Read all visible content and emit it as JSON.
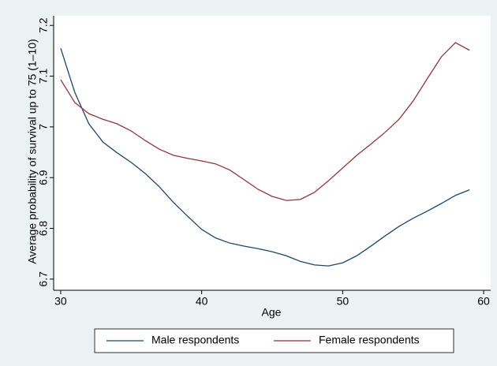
{
  "chart_data": {
    "type": "line",
    "x": [
      30,
      31,
      32,
      33,
      34,
      35,
      36,
      37,
      38,
      39,
      40,
      41,
      42,
      43,
      44,
      45,
      46,
      47,
      48,
      49,
      50,
      51,
      52,
      53,
      54,
      55,
      56,
      57,
      58,
      59
    ],
    "series": [
      {
        "name": "Male respondents",
        "color": "#1a476f",
        "values": [
          7.155,
          7.068,
          7.006,
          6.97,
          6.949,
          6.93,
          6.908,
          6.882,
          6.851,
          6.824,
          6.798,
          6.781,
          6.771,
          6.765,
          6.76,
          6.754,
          6.746,
          6.735,
          6.728,
          6.726,
          6.732,
          6.746,
          6.765,
          6.785,
          6.804,
          6.82,
          6.834,
          6.849,
          6.865,
          6.876
        ]
      },
      {
        "name": "Female respondents",
        "color": "#90353b",
        "values": [
          7.093,
          7.048,
          7.026,
          7.015,
          7.006,
          6.992,
          6.973,
          6.956,
          6.944,
          6.938,
          6.933,
          6.927,
          6.915,
          6.896,
          6.877,
          6.863,
          6.855,
          6.857,
          6.871,
          6.894,
          6.919,
          6.944,
          6.966,
          6.989,
          7.015,
          7.051,
          7.095,
          7.138,
          7.166,
          7.151
        ]
      }
    ],
    "xlabel": "Age",
    "ylabel": "Average probability of survival up to 75 (1–10)",
    "xlim": [
      29.5,
      60.5
    ],
    "xticks": [
      30,
      40,
      50,
      60
    ],
    "ylim": [
      6.678,
      7.219
    ],
    "yticks": [
      6.7,
      6.8,
      6.9,
      7,
      7.1,
      7.2
    ],
    "legend": "bottom",
    "grid": false
  }
}
